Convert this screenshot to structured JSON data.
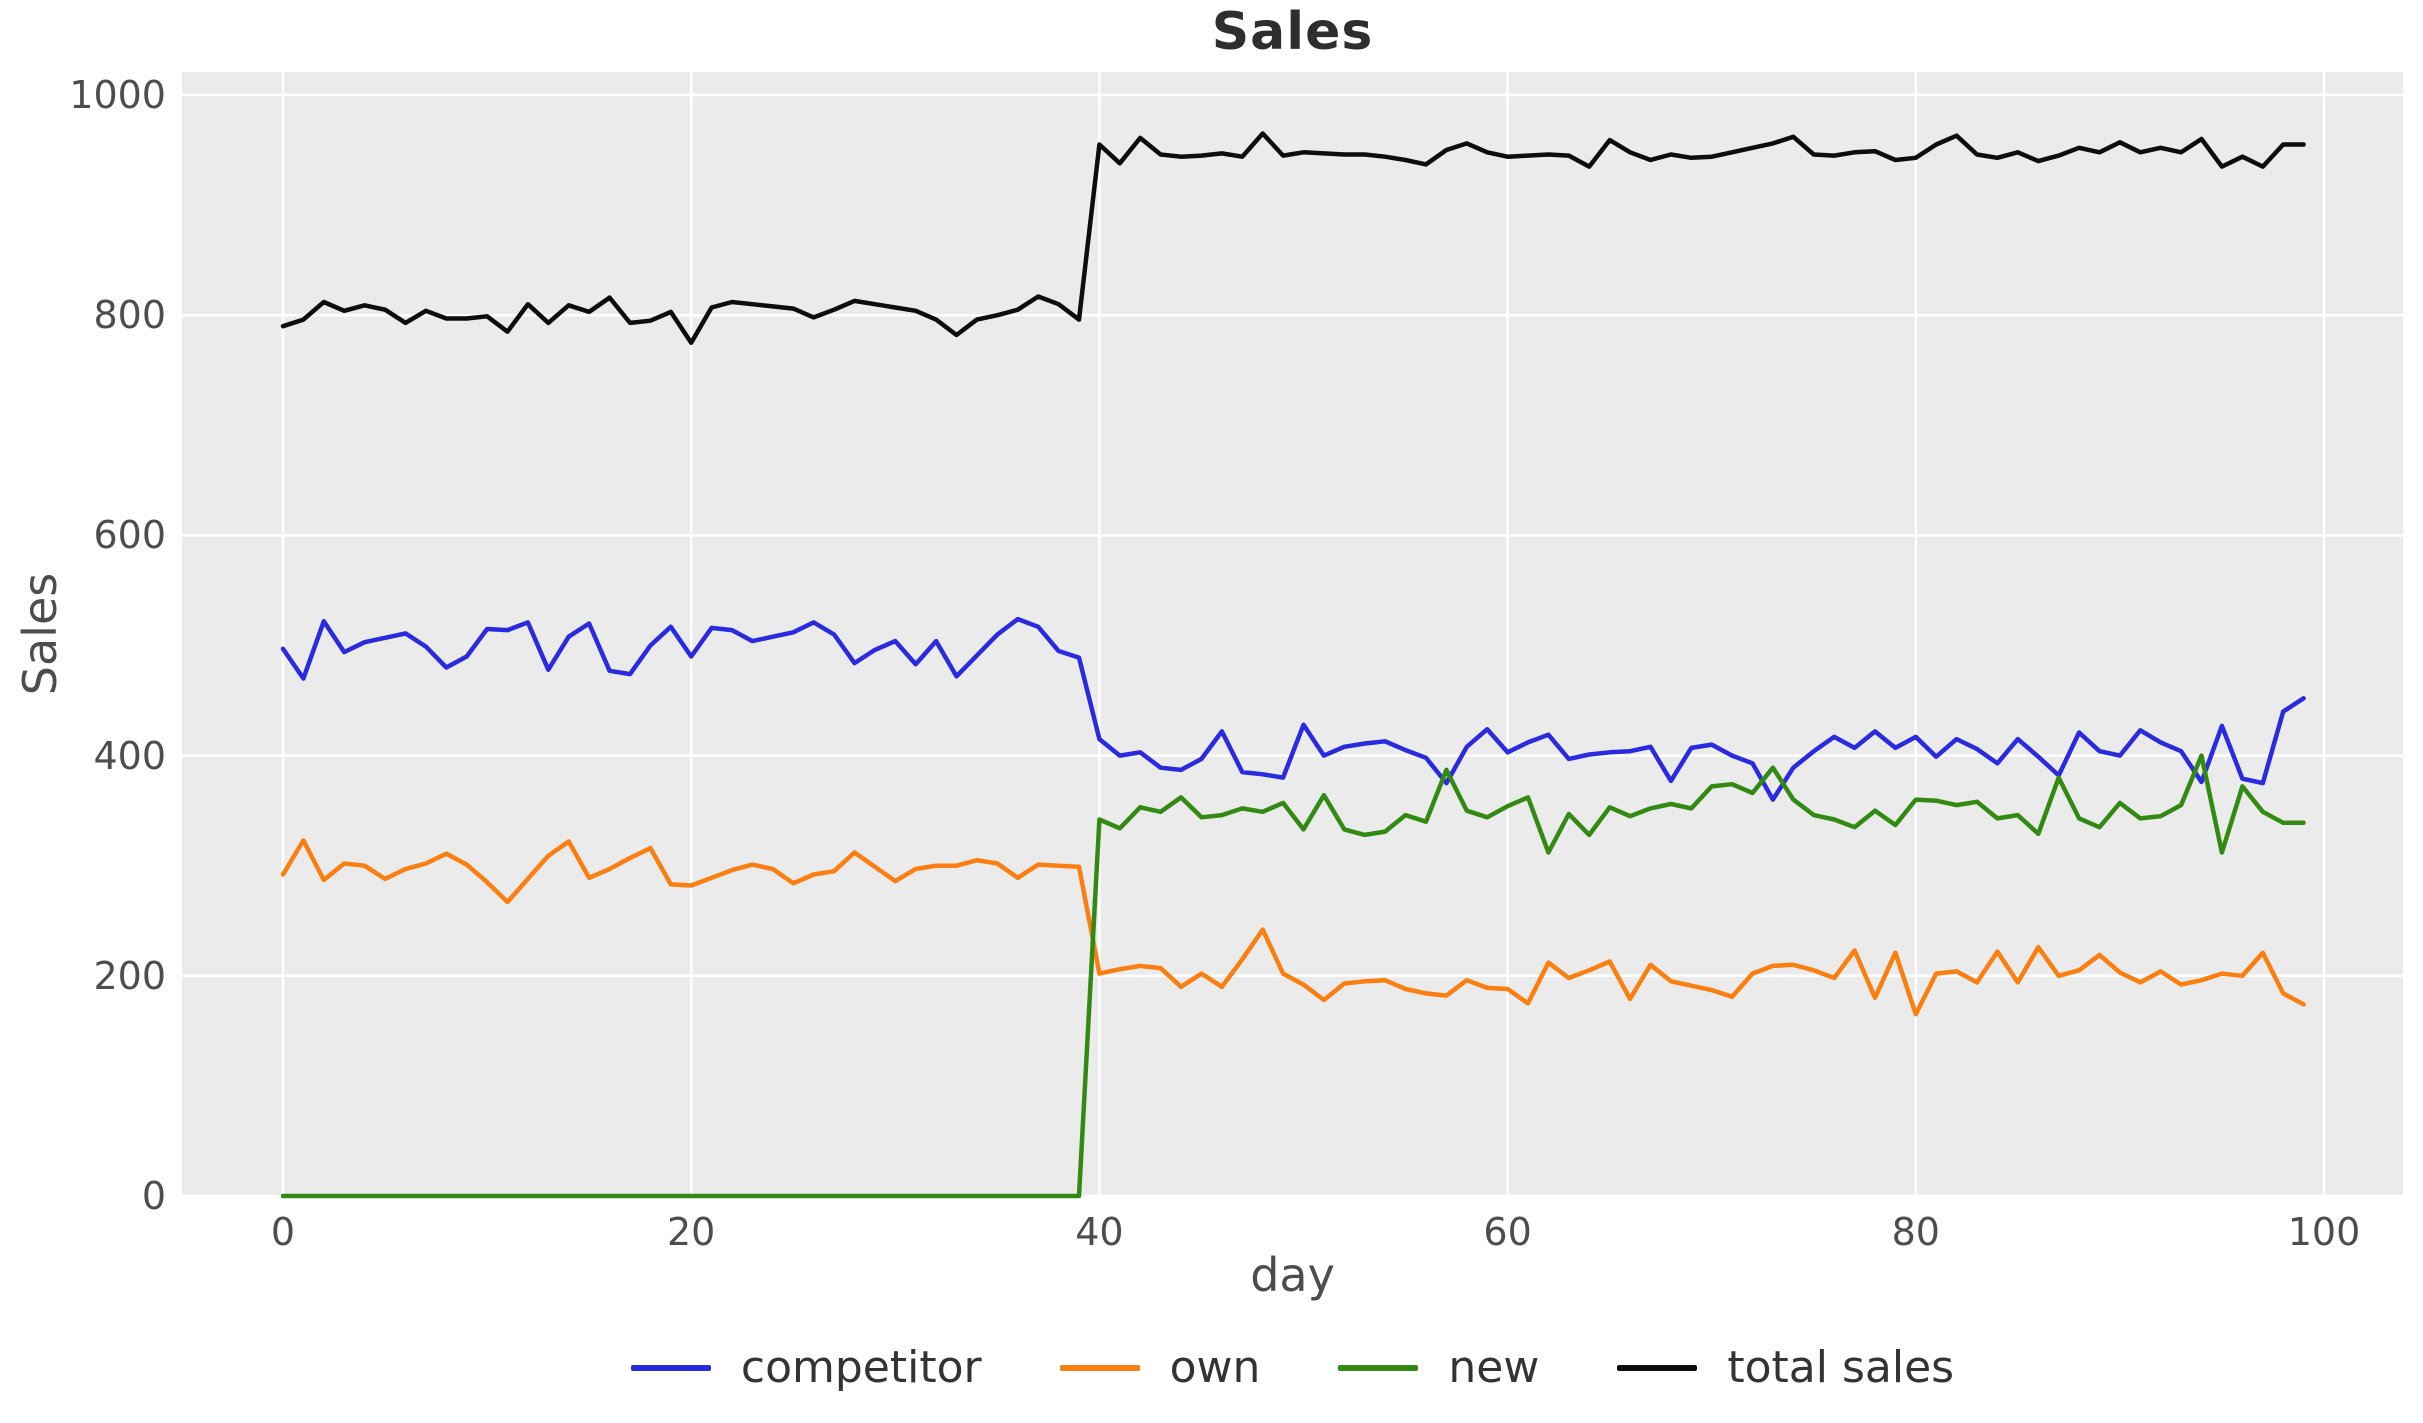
{
  "title": "Sales",
  "axes": {
    "xlabel": "day",
    "ylabel": "Sales",
    "x_tick_labels": [
      "0",
      "20",
      "40",
      "60",
      "80",
      "100"
    ],
    "y_tick_labels": [
      "0",
      "200",
      "400",
      "600",
      "800",
      "1000"
    ]
  },
  "colors": {
    "plot_background": "#ebebeb",
    "grid": "#ffffff",
    "text": "#4d4d4d",
    "title_text": "#2e2e2e"
  },
  "chart_data": {
    "type": "line",
    "title": "Sales",
    "xlabel": "day",
    "ylabel": "Sales",
    "x_ticks": [
      0,
      20,
      40,
      60,
      80,
      100
    ],
    "y_ticks": [
      0,
      200,
      400,
      600,
      800,
      1000
    ],
    "xlim": [
      -4.95,
      103.87
    ],
    "ylim": [
      0,
      1021
    ],
    "grid": true,
    "legend_position": "bottom-center",
    "x": [
      0,
      1,
      2,
      3,
      4,
      5,
      6,
      7,
      8,
      9,
      10,
      11,
      12,
      13,
      14,
      15,
      16,
      17,
      18,
      19,
      20,
      21,
      22,
      23,
      24,
      25,
      26,
      27,
      28,
      29,
      30,
      31,
      32,
      33,
      34,
      35,
      36,
      37,
      38,
      39,
      40,
      41,
      42,
      43,
      44,
      45,
      46,
      47,
      48,
      49,
      50,
      51,
      52,
      53,
      54,
      55,
      56,
      57,
      58,
      59,
      60,
      61,
      62,
      63,
      64,
      65,
      66,
      67,
      68,
      69,
      70,
      71,
      72,
      73,
      74,
      75,
      76,
      77,
      78,
      79,
      80,
      81,
      82,
      83,
      84,
      85,
      86,
      87,
      88,
      89,
      90,
      91,
      92,
      93,
      94,
      95,
      96,
      97,
      98,
      99
    ],
    "series": [
      {
        "name": "competitor",
        "color": "#2a2ae0",
        "values": [
          497,
          470,
          522,
          494,
          503,
          507,
          511,
          499,
          480,
          490,
          515,
          514,
          521,
          478,
          508,
          520,
          477,
          474,
          500,
          517,
          490,
          516,
          514,
          504,
          508,
          512,
          521,
          510,
          484,
          496,
          504,
          483,
          504,
          472,
          491,
          510,
          524,
          517,
          495,
          489,
          415,
          400,
          403,
          389,
          387,
          397,
          422,
          385,
          383,
          380,
          428,
          400,
          408,
          411,
          413,
          405,
          398,
          375,
          408,
          424,
          403,
          412,
          419,
          397,
          401,
          403,
          404,
          408,
          377,
          407,
          410,
          400,
          393,
          360,
          389,
          404,
          417,
          407,
          422,
          407,
          417,
          399,
          415,
          406,
          393,
          415,
          399,
          382,
          421,
          404,
          400,
          423,
          412,
          404,
          376,
          427,
          379,
          375,
          440,
          452
        ]
      },
      {
        "name": "own",
        "color": "#fb7e11",
        "values": [
          292,
          323,
          287,
          302,
          300,
          288,
          297,
          302,
          311,
          301,
          285,
          267,
          288,
          309,
          322,
          289,
          297,
          307,
          316,
          283,
          282,
          289,
          296,
          301,
          297,
          284,
          292,
          295,
          312,
          299,
          286,
          297,
          300,
          300,
          305,
          302,
          289,
          301,
          300,
          299,
          202,
          206,
          209,
          207,
          190,
          202,
          190,
          215,
          242,
          202,
          192,
          178,
          193,
          195,
          196,
          188,
          184,
          182,
          196,
          189,
          188,
          175,
          212,
          198,
          205,
          213,
          179,
          210,
          195,
          191,
          187,
          181,
          202,
          209,
          210,
          205,
          198,
          223,
          180,
          221,
          165,
          202,
          204,
          194,
          222,
          194,
          226,
          200,
          205,
          219,
          203,
          194,
          204,
          192,
          196,
          202,
          200,
          221,
          184,
          174
        ]
      },
      {
        "name": "new",
        "color": "#338a12",
        "values": [
          0,
          0,
          0,
          0,
          0,
          0,
          0,
          0,
          0,
          0,
          0,
          0,
          0,
          0,
          0,
          0,
          0,
          0,
          0,
          0,
          0,
          0,
          0,
          0,
          0,
          0,
          0,
          0,
          0,
          0,
          0,
          0,
          0,
          0,
          0,
          0,
          0,
          0,
          0,
          0,
          342,
          334,
          353,
          349,
          362,
          344,
          346,
          352,
          349,
          357,
          333,
          364,
          333,
          328,
          331,
          346,
          340,
          387,
          350,
          344,
          354,
          362,
          312,
          347,
          328,
          353,
          345,
          352,
          356,
          352,
          372,
          374,
          366,
          389,
          360,
          346,
          342,
          335,
          350,
          337,
          360,
          359,
          355,
          358,
          343,
          346,
          329,
          380,
          343,
          335,
          357,
          343,
          345,
          355,
          400,
          312,
          372,
          349,
          339,
          339
        ]
      },
      {
        "name": "total sales",
        "color": "#0d0d0d",
        "values": [
          790,
          796,
          812,
          804,
          809,
          805,
          793,
          804,
          797,
          797,
          799,
          785,
          810,
          793,
          809,
          803,
          816,
          793,
          795,
          803,
          775,
          807,
          812,
          810,
          808,
          806,
          798,
          805,
          813,
          810,
          807,
          804,
          796,
          782,
          796,
          800,
          805,
          817,
          810,
          796,
          955,
          938,
          961,
          946,
          944,
          945,
          947,
          944,
          965,
          945,
          948,
          947,
          946,
          946,
          944,
          941,
          937,
          950,
          956,
          948,
          944,
          945,
          946,
          945,
          935,
          959,
          948,
          941,
          946,
          943,
          944,
          948,
          952,
          956,
          962,
          946,
          945,
          948,
          949,
          941,
          943,
          955,
          963,
          946,
          943,
          948,
          940,
          945,
          952,
          948,
          957,
          948,
          952,
          948,
          960,
          935,
          944,
          935,
          955,
          955
        ]
      }
    ]
  }
}
